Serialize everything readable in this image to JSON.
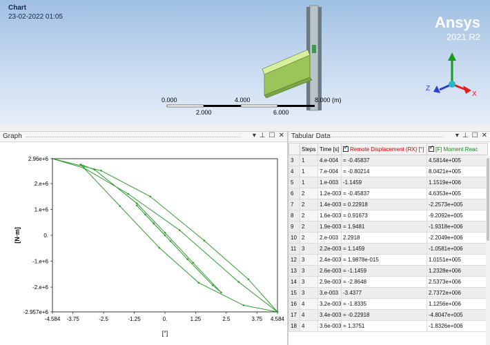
{
  "viewport": {
    "chart_label": "Chart",
    "timestamp": "23-02-2022 01:05",
    "brand": "Ansys",
    "version": "2021 R2",
    "scale_bar": {
      "labels_top": [
        "0.000",
        "4.000",
        "8.000 (m)"
      ],
      "labels_bottom": [
        "2.000",
        "6.000"
      ]
    },
    "axes": {
      "x": "X",
      "y": "Y",
      "z": "Z",
      "colors": {
        "x": "#e02020",
        "y": "#1a9a1a",
        "z": "#2a3fd0"
      }
    }
  },
  "graph_panel": {
    "title": "Graph",
    "header_icons": [
      "dropdown-icon",
      "pin-icon",
      "maximize-icon",
      "close-icon"
    ],
    "header_glyphs": [
      "▾",
      "📌",
      "☐",
      "✕"
    ]
  },
  "tabular_panel": {
    "title": "Tabular Data",
    "header_glyphs": [
      "▾",
      "📌",
      "☐",
      "✕"
    ],
    "columns": [
      "",
      "Steps",
      "Time [s]",
      "Remote Displacement (RX) [°]",
      "[F] Moment Reac"
    ],
    "column_colors": {
      "remote_displacement": "#cc0000",
      "moment": "#1a8a1a"
    },
    "rows": [
      [
        "3",
        "1",
        "4.e-004",
        "= -0.45837",
        "4.5814e+005"
      ],
      [
        "4",
        "1",
        "7.e-004",
        "= -0.80214",
        "8.0421e+005"
      ],
      [
        "5",
        "1",
        "1.e-003",
        "-1.1459",
        "1.1519e+006"
      ],
      [
        "6",
        "2",
        "1.2e-003",
        "= -0.45837",
        "4.6353e+005"
      ],
      [
        "7",
        "2",
        "1.4e-003",
        "= 0.22918",
        "-2.2573e+005"
      ],
      [
        "8",
        "2",
        "1.6e-003",
        "= 0.91673",
        "-9.2092e+005"
      ],
      [
        "9",
        "2",
        "1.9e-003",
        "= 1.9481",
        "-1.9318e+006"
      ],
      [
        "10",
        "2",
        "2.e-003",
        "2.2918",
        "-2.2049e+006"
      ],
      [
        "11",
        "3",
        "2.2e-003",
        "= 1.1459",
        "-1.0581e+006"
      ],
      [
        "12",
        "3",
        "2.4e-003",
        "= 1.9878e-015",
        "1.0151e+005"
      ],
      [
        "13",
        "3",
        "2.6e-003",
        "= -1.1459",
        "1.2328e+006"
      ],
      [
        "14",
        "3",
        "2.9e-003",
        "= -2.8648",
        "2.5373e+006"
      ],
      [
        "15",
        "3",
        "3.e-003",
        "-3.4377",
        "2.7372e+006"
      ],
      [
        "16",
        "4",
        "3.2e-003",
        "= -1.8335",
        "1.1256e+006"
      ],
      [
        "17",
        "4",
        "3.4e-003",
        "= -0.22918",
        "-4.8047e+005"
      ],
      [
        "18",
        "4",
        "3.6e-003",
        "= 1.3751",
        "-1.8326e+006"
      ]
    ]
  },
  "chart_data": {
    "type": "line",
    "title": "",
    "xlabel": "[°]",
    "ylabel": "[N·m]",
    "xlim": [
      -4.584,
      4.584
    ],
    "ylim": [
      -2957000.0,
      2960000.0
    ],
    "xticks": [
      -4.584,
      -3.75,
      -2.5,
      -1.25,
      0,
      1.25,
      2.5,
      3.75,
      4.584
    ],
    "xtick_labels": [
      "-4.584",
      "-3.75",
      "-2.5",
      "-1.25",
      "0.",
      "1.25",
      "2.5",
      "3.75",
      "4.584"
    ],
    "yticks": [
      2960000.0,
      2000000.0,
      1000000.0,
      0,
      -1000000.0,
      -2000000.0,
      -2957000.0
    ],
    "ytick_labels": [
      "2.96e+6",
      "2.e+6",
      "1.e+6",
      "0.",
      "-1.e+6",
      "-2.e+6",
      "-2.957e+6"
    ],
    "grid": false,
    "line_color": "#2e9a2e",
    "series": [
      {
        "x": [
          0,
          -0.45837,
          -0.80214,
          -1.1459,
          -0.45837,
          0.22918,
          0.91673,
          1.9481,
          2.2918,
          1.1459,
          0,
          -1.1459,
          -2.8648,
          -3.4377,
          -1.8335,
          -0.22918,
          1.3751,
          3.2,
          4.584,
          3.0,
          0.6,
          -1.5,
          -3.3,
          -4.584,
          -2.6,
          -0.6,
          1.6,
          3.4,
          4.584
        ],
        "y": [
          0,
          458140,
          804210,
          1151900,
          463530,
          -225730,
          -920920,
          -1931800,
          -2204900,
          -1058100,
          101510,
          1232800,
          2537300,
          2737200,
          1125600,
          -480470,
          -1832600,
          -2700000,
          -2957000,
          -1800000,
          200000,
          1600000,
          2600000,
          2960000,
          2500000,
          1500000,
          -200000,
          -1700000,
          -2957000
        ]
      }
    ]
  }
}
